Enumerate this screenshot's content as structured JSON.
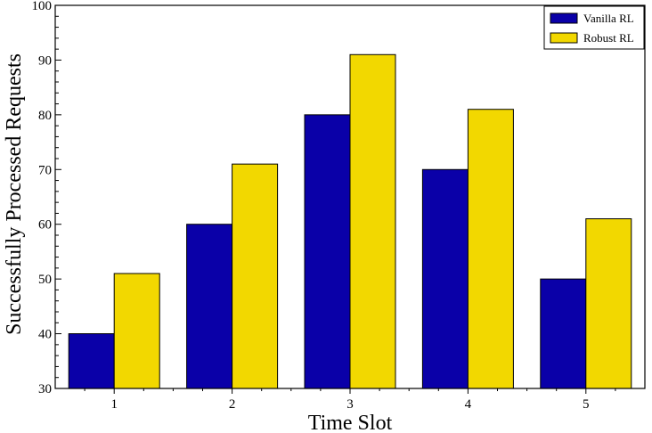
{
  "chart_data": {
    "type": "bar",
    "title": "",
    "xlabel": "Time Slot",
    "ylabel": "Successfully Processed Requests",
    "categories": [
      "1",
      "2",
      "3",
      "4",
      "5"
    ],
    "series": [
      {
        "name": "Vanilla RL",
        "color": "#0a00a8",
        "values": [
          40,
          60,
          80,
          70,
          50
        ]
      },
      {
        "name": "Robust RL",
        "color": "#f2d800",
        "values": [
          51,
          71,
          91,
          81,
          61
        ]
      }
    ],
    "ylim": [
      30,
      100
    ],
    "yticks": [
      "30",
      "40",
      "50",
      "60",
      "70",
      "80",
      "90",
      "100"
    ],
    "grid": false,
    "legend_position": "top-right"
  }
}
